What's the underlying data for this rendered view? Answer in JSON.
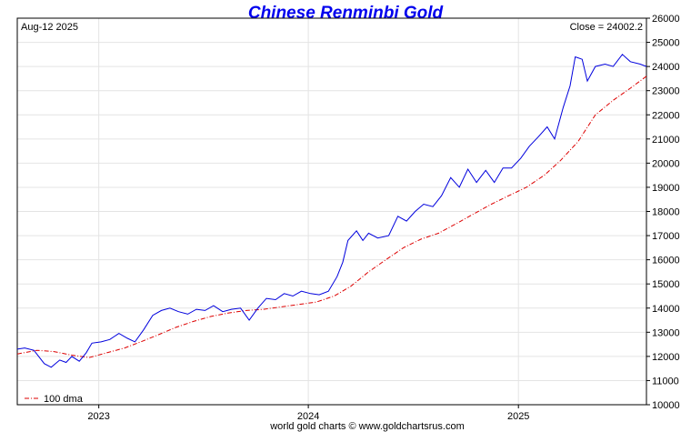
{
  "chart_data": {
    "type": "line",
    "title": "Chinese Renminbi Gold",
    "date_label": "Aug-12  2025",
    "close_label": "Close = 24002.2",
    "credit": "world gold charts © www.goldchartsrus.com",
    "ylim": [
      10000,
      26000
    ],
    "yticks": [
      "10000",
      "11000",
      "12000",
      "13000",
      "14000",
      "15000",
      "16000",
      "17000",
      "18000",
      "19000",
      "20000",
      "21000",
      "22000",
      "23000",
      "24000",
      "25000",
      "26000"
    ],
    "xlim": [
      "2022-08-12",
      "2025-08-12"
    ],
    "xticks": [
      {
        "label": "2023",
        "date": "2023-01-01"
      },
      {
        "label": "2024",
        "date": "2024-01-01"
      },
      {
        "label": "2025",
        "date": "2025-01-01"
      }
    ],
    "grid": true,
    "legend": {
      "position": "bottom-left",
      "label": "100 dma"
    },
    "colors": {
      "price": "#0000dd",
      "dma": "#dd0000",
      "grid": "#e4e4e4"
    },
    "series": [
      {
        "key": "price",
        "x": [
          "2022-08-12",
          "2022-08-25",
          "2022-09-10",
          "2022-09-28",
          "2022-10-10",
          "2022-10-25",
          "2022-11-05",
          "2022-11-15",
          "2022-11-28",
          "2022-12-10",
          "2022-12-20",
          "2023-01-05",
          "2023-01-20",
          "2023-02-05",
          "2023-02-20",
          "2023-03-05",
          "2023-03-20",
          "2023-04-05",
          "2023-04-20",
          "2023-05-05",
          "2023-05-20",
          "2023-06-05",
          "2023-06-20",
          "2023-07-05",
          "2023-07-20",
          "2023-08-05",
          "2023-08-20",
          "2023-09-05",
          "2023-09-20",
          "2023-10-05",
          "2023-10-20",
          "2023-11-05",
          "2023-11-20",
          "2023-12-05",
          "2023-12-20",
          "2024-01-05",
          "2024-01-20",
          "2024-02-05",
          "2024-02-20",
          "2024-03-01",
          "2024-03-10",
          "2024-03-25",
          "2024-04-05",
          "2024-04-15",
          "2024-05-01",
          "2024-05-20",
          "2024-06-05",
          "2024-06-20",
          "2024-07-05",
          "2024-07-20",
          "2024-08-05",
          "2024-08-20",
          "2024-09-05",
          "2024-09-20",
          "2024-10-05",
          "2024-10-20",
          "2024-11-05",
          "2024-11-20",
          "2024-12-05",
          "2024-12-20",
          "2025-01-05",
          "2025-01-20",
          "2025-02-05",
          "2025-02-20",
          "2025-03-05",
          "2025-03-20",
          "2025-04-01",
          "2025-04-10",
          "2025-04-22",
          "2025-05-01",
          "2025-05-15",
          "2025-06-01",
          "2025-06-15",
          "2025-07-01",
          "2025-07-15",
          "2025-08-01",
          "2025-08-12"
        ],
        "y": [
          12300,
          12350,
          12250,
          11700,
          11550,
          11850,
          11750,
          12000,
          11800,
          12150,
          12550,
          12600,
          12700,
          12950,
          12750,
          12600,
          13100,
          13700,
          13900,
          14000,
          13850,
          13750,
          13950,
          13900,
          14100,
          13850,
          13950,
          14000,
          13500,
          14000,
          14400,
          14350,
          14600,
          14500,
          14700,
          14600,
          14550,
          14700,
          15300,
          15900,
          16800,
          17200,
          16800,
          17100,
          16900,
          17000,
          17800,
          17600,
          18000,
          18300,
          18200,
          18650,
          19400,
          19000,
          19750,
          19200,
          19700,
          19200,
          19800,
          19800,
          20200,
          20700,
          21100,
          21500,
          21000,
          22300,
          23200,
          24400,
          24300,
          23400,
          24000,
          24100,
          24000,
          24500,
          24200,
          24100,
          24000
        ]
      },
      {
        "key": "dma",
        "x": [
          "2022-08-12",
          "2022-09-15",
          "2022-10-15",
          "2022-11-15",
          "2022-12-15",
          "2023-01-15",
          "2023-02-15",
          "2023-03-15",
          "2023-04-15",
          "2023-05-15",
          "2023-06-15",
          "2023-07-15",
          "2023-08-15",
          "2023-09-15",
          "2023-10-15",
          "2023-11-15",
          "2023-12-15",
          "2024-01-15",
          "2024-02-15",
          "2024-03-15",
          "2024-04-15",
          "2024-05-15",
          "2024-06-15",
          "2024-07-15",
          "2024-08-15",
          "2024-09-15",
          "2024-10-15",
          "2024-11-15",
          "2024-12-15",
          "2025-01-15",
          "2025-02-15",
          "2025-03-15",
          "2025-04-15",
          "2025-05-15",
          "2025-06-15",
          "2025-07-15",
          "2025-08-12"
        ],
        "y": [
          12100,
          12250,
          12200,
          12050,
          11950,
          12150,
          12350,
          12600,
          12900,
          13200,
          13450,
          13650,
          13800,
          13900,
          13950,
          14050,
          14150,
          14250,
          14500,
          14900,
          15500,
          16000,
          16500,
          16850,
          17100,
          17500,
          17900,
          18300,
          18650,
          19000,
          19500,
          20100,
          20900,
          22000,
          22600,
          23100,
          23600
        ]
      }
    ]
  }
}
